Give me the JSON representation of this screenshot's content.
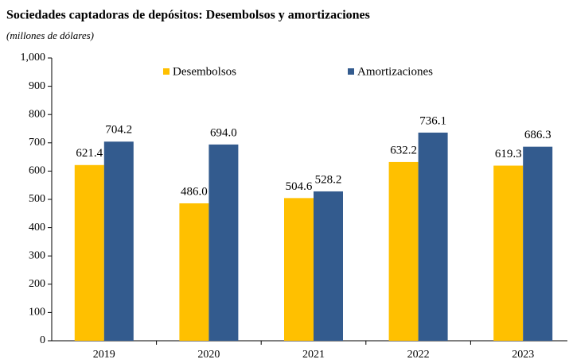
{
  "chart_data": {
    "type": "bar",
    "title": "Sociedades captadoras de depósitos: Desembolsos y amortizaciones",
    "subtitle": "(millones de dólares)",
    "categories": [
      "2019",
      "2020",
      "2021",
      "2022",
      "2023"
    ],
    "series": [
      {
        "name": "Desembolsos",
        "color": "#ffc000",
        "values": [
          621.4,
          486.0,
          504.6,
          632.2,
          619.3
        ],
        "value_labels": [
          "621.4",
          "486.0",
          "504.6",
          "632.2",
          "619.3"
        ]
      },
      {
        "name": "Amortizaciones",
        "color": "#335b8e",
        "values": [
          704.2,
          694.0,
          528.2,
          736.1,
          686.3
        ],
        "value_labels": [
          "704.2",
          "694.0",
          "528.2",
          "736.1",
          "686.3"
        ]
      }
    ],
    "ylim": [
      0,
      1000
    ],
    "yticks": [
      0,
      100,
      200,
      300,
      400,
      500,
      600,
      700,
      800,
      900,
      {
        "value": 1000,
        "label": "1,000"
      }
    ],
    "legend": "top",
    "grid": false
  }
}
